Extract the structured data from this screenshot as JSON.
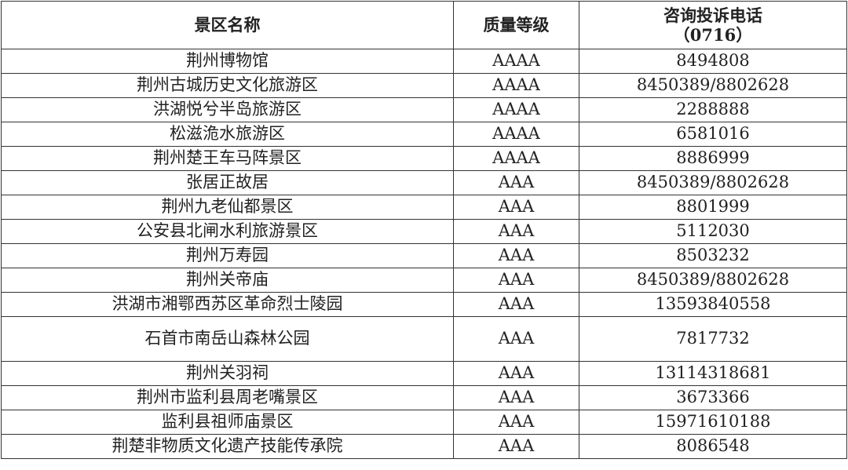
{
  "table": {
    "headers": [
      "景区名称",
      "质量等级",
      "咨询投诉电话",
      "（0716）"
    ],
    "rows": [
      [
        "荆州博物馆",
        "AAAA",
        "8494808"
      ],
      [
        "荆州古城历史文化旅游区",
        "AAAA",
        "8450389/8802628"
      ],
      [
        "洪湖悦兮半岛旅游区",
        "AAAA",
        "2288888"
      ],
      [
        "松滋洈水旅游区",
        "AAAA",
        "6581016"
      ],
      [
        "荆州楚王车马阵景区",
        "AAAA",
        "8886999"
      ],
      [
        "张居正故居",
        "AAA",
        "8450389/8802628"
      ],
      [
        "荆州九老仙都景区",
        "AAA",
        "8801999"
      ],
      [
        "公安县北闸水利旅游景区",
        "AAA",
        "5112030"
      ],
      [
        "荆州万寿园",
        "AAA",
        "8503232"
      ],
      [
        "荆州关帝庙",
        "AAA",
        "8450389/8802628"
      ],
      [
        "洪湖市湘鄂西苏区革命烈士陵园",
        "AAA",
        "13593840558"
      ],
      [
        "石首市南岳山森林公园",
        "AAA",
        "7817732"
      ],
      [
        "荆州关羽祠",
        "AAA",
        "13114318681"
      ],
      [
        "荆州市监利县周老嘴景区",
        "AAA",
        "3673366"
      ],
      [
        "监利县祖师庙景区",
        "AAA",
        "15971610188"
      ],
      [
        "荆楚非物质文化遗产技能传承院",
        "AAA",
        "8086548"
      ]
    ]
  }
}
